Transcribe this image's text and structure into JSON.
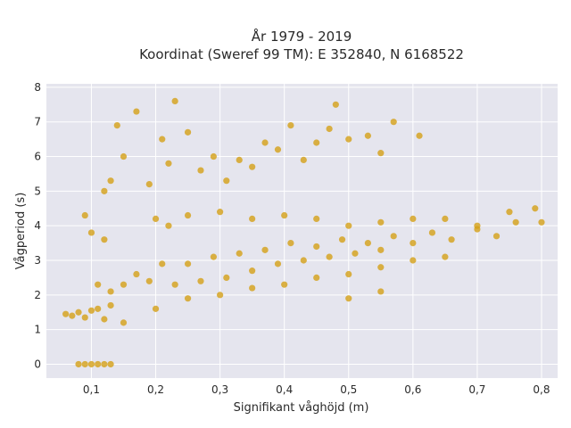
{
  "chart_data": {
    "type": "scatter",
    "title_lines": [
      "År 1979 - 2019",
      "Koordinat (Sweref 99 TM): E 352840, N 6168522"
    ],
    "xlabel": "Signifikant våghöjd (m)",
    "ylabel": "Vågperiod (s)",
    "xlim": [
      0.03,
      0.825
    ],
    "ylim": [
      -0.4,
      8.1
    ],
    "x_ticks": [
      0.1,
      0.2,
      0.3,
      0.4,
      0.5,
      0.6,
      0.7,
      0.8
    ],
    "x_tick_labels": [
      "0,1",
      "0,2",
      "0,3",
      "0,4",
      "0,5",
      "0,6",
      "0,7",
      "0,8"
    ],
    "y_ticks": [
      0,
      1,
      2,
      3,
      4,
      5,
      6,
      7,
      8
    ],
    "y_tick_labels": [
      "0",
      "1",
      "2",
      "3",
      "4",
      "5",
      "6",
      "7",
      "8"
    ],
    "grid": true,
    "legend": "none",
    "marker_color": "#D4A017",
    "background_color": "#E5E5EE",
    "grid_color": "#FFFFFF",
    "series": [
      {
        "values": [
          [
            0.06,
            1.45
          ],
          [
            0.07,
            1.4
          ],
          [
            0.08,
            1.5
          ],
          [
            0.09,
            1.35
          ],
          [
            0.1,
            1.55
          ],
          [
            0.11,
            1.6
          ],
          [
            0.12,
            1.3
          ],
          [
            0.13,
            1.7
          ],
          [
            0.08,
            0
          ],
          [
            0.09,
            0
          ],
          [
            0.1,
            0
          ],
          [
            0.11,
            0
          ],
          [
            0.12,
            0
          ],
          [
            0.13,
            0
          ],
          [
            0.11,
            2.3
          ],
          [
            0.13,
            2.1
          ],
          [
            0.15,
            2.3
          ],
          [
            0.17,
            2.6
          ],
          [
            0.19,
            2.4
          ],
          [
            0.21,
            2.9
          ],
          [
            0.23,
            2.3
          ],
          [
            0.25,
            2.9
          ],
          [
            0.27,
            2.4
          ],
          [
            0.29,
            3.1
          ],
          [
            0.31,
            2.5
          ],
          [
            0.33,
            3.2
          ],
          [
            0.35,
            2.7
          ],
          [
            0.37,
            3.3
          ],
          [
            0.39,
            2.9
          ],
          [
            0.41,
            3.5
          ],
          [
            0.43,
            3.0
          ],
          [
            0.45,
            3.4
          ],
          [
            0.47,
            3.1
          ],
          [
            0.49,
            3.6
          ],
          [
            0.51,
            3.2
          ],
          [
            0.53,
            3.5
          ],
          [
            0.55,
            3.3
          ],
          [
            0.57,
            3.7
          ],
          [
            0.6,
            3.5
          ],
          [
            0.63,
            3.8
          ],
          [
            0.66,
            3.6
          ],
          [
            0.7,
            3.9
          ],
          [
            0.73,
            3.7
          ],
          [
            0.76,
            4.1
          ],
          [
            0.79,
            4.5
          ],
          [
            0.8,
            4.1
          ],
          [
            0.12,
            5.0
          ],
          [
            0.13,
            5.3
          ],
          [
            0.14,
            6.9
          ],
          [
            0.15,
            6.0
          ],
          [
            0.17,
            7.3
          ],
          [
            0.19,
            5.2
          ],
          [
            0.21,
            6.5
          ],
          [
            0.22,
            5.8
          ],
          [
            0.23,
            7.6
          ],
          [
            0.25,
            6.7
          ],
          [
            0.27,
            5.6
          ],
          [
            0.29,
            6.0
          ],
          [
            0.31,
            5.3
          ],
          [
            0.33,
            5.9
          ],
          [
            0.35,
            5.7
          ],
          [
            0.37,
            6.4
          ],
          [
            0.39,
            6.2
          ],
          [
            0.41,
            6.9
          ],
          [
            0.43,
            5.9
          ],
          [
            0.45,
            6.4
          ],
          [
            0.47,
            6.8
          ],
          [
            0.48,
            7.5
          ],
          [
            0.5,
            6.5
          ],
          [
            0.53,
            6.6
          ],
          [
            0.55,
            6.1
          ],
          [
            0.57,
            7.0
          ],
          [
            0.61,
            6.6
          ],
          [
            0.09,
            4.3
          ],
          [
            0.1,
            3.8
          ],
          [
            0.12,
            3.6
          ],
          [
            0.2,
            4.2
          ],
          [
            0.22,
            4.0
          ],
          [
            0.25,
            4.3
          ],
          [
            0.3,
            4.4
          ],
          [
            0.35,
            4.2
          ],
          [
            0.4,
            4.3
          ],
          [
            0.45,
            4.2
          ],
          [
            0.5,
            4.0
          ],
          [
            0.55,
            4.1
          ],
          [
            0.6,
            4.2
          ],
          [
            0.65,
            4.2
          ],
          [
            0.7,
            4.0
          ],
          [
            0.75,
            4.4
          ],
          [
            0.15,
            1.2
          ],
          [
            0.2,
            1.6
          ],
          [
            0.25,
            1.9
          ],
          [
            0.3,
            2.0
          ],
          [
            0.35,
            2.2
          ],
          [
            0.4,
            2.3
          ],
          [
            0.45,
            2.5
          ],
          [
            0.5,
            2.6
          ],
          [
            0.55,
            2.8
          ],
          [
            0.5,
            1.9
          ],
          [
            0.55,
            2.1
          ],
          [
            0.6,
            3.0
          ],
          [
            0.65,
            3.1
          ]
        ]
      }
    ]
  }
}
